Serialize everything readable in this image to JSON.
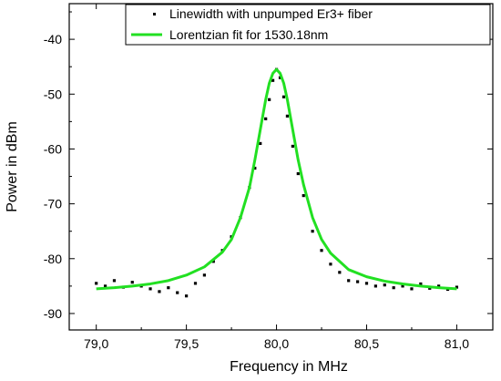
{
  "chart_data": {
    "type": "scatter",
    "title": "",
    "xlabel": "Frequency in MHz",
    "ylabel": "Power in dBm",
    "xlim": [
      78.85,
      81.2
    ],
    "ylim": [
      -93,
      -33.5
    ],
    "x_ticks": [
      79.0,
      79.5,
      80.0,
      80.5,
      81.0
    ],
    "x_tick_labels": [
      "79,0",
      "79,5",
      "80,0",
      "80,5",
      "81,0"
    ],
    "y_ticks": [
      -90,
      -80,
      -70,
      -60,
      -50,
      -40
    ],
    "y_tick_labels": [
      "-90",
      "-80",
      "-70",
      "-60",
      "-50",
      "-40"
    ],
    "grid": false,
    "legend_position": "top-right",
    "colors": {
      "measured": "#000000",
      "fit": "#22e022"
    },
    "series": [
      {
        "name": "Linewidth with unpumped Er3+ fiber",
        "style": "points",
        "x": [
          79.0,
          79.05,
          79.1,
          79.15,
          79.2,
          79.25,
          79.3,
          79.35,
          79.4,
          79.45,
          79.5,
          79.55,
          79.6,
          79.65,
          79.7,
          79.75,
          79.8,
          79.85,
          79.88,
          79.91,
          79.94,
          79.96,
          79.98,
          80.0,
          80.02,
          80.04,
          80.06,
          80.09,
          80.12,
          80.15,
          80.2,
          80.25,
          80.3,
          80.35,
          80.4,
          80.45,
          80.5,
          80.55,
          80.6,
          80.65,
          80.7,
          80.75,
          80.8,
          80.85,
          80.9,
          80.95,
          81.0
        ],
        "y": [
          -84.5,
          -85.0,
          -84.0,
          -85.2,
          -84.3,
          -85.0,
          -85.5,
          -86.0,
          -85.3,
          -86.2,
          -86.8,
          -84.5,
          -83.0,
          -80.5,
          -78.5,
          -76.0,
          -72.5,
          -67.0,
          -63.5,
          -59.0,
          -54.5,
          -51.0,
          -47.5,
          -45.5,
          -47.0,
          -50.5,
          -54.0,
          -59.5,
          -64.5,
          -68.5,
          -75.0,
          -78.5,
          -81.0,
          -82.5,
          -84.0,
          -84.2,
          -84.5,
          -85.0,
          -84.8,
          -85.3,
          -85.0,
          -85.5,
          -84.6,
          -85.4,
          -85.0,
          -85.6,
          -85.2
        ]
      },
      {
        "name": "Lorentzian fit for 1530.18nm",
        "style": "line",
        "x": [
          79.0,
          79.1,
          79.2,
          79.3,
          79.4,
          79.5,
          79.6,
          79.7,
          79.75,
          79.8,
          79.85,
          79.88,
          79.91,
          79.94,
          79.96,
          79.98,
          80.0,
          80.02,
          80.04,
          80.06,
          80.09,
          80.12,
          80.15,
          80.2,
          80.25,
          80.3,
          80.4,
          80.5,
          80.6,
          80.7,
          80.8,
          80.9,
          81.0
        ],
        "y": [
          -85.5,
          -85.3,
          -85.0,
          -84.6,
          -84.0,
          -83.0,
          -81.5,
          -78.8,
          -76.5,
          -72.5,
          -67.0,
          -62.0,
          -56.5,
          -51.0,
          -48.0,
          -46.2,
          -45.5,
          -46.2,
          -48.0,
          -51.0,
          -56.5,
          -62.0,
          -66.5,
          -72.5,
          -76.5,
          -79.0,
          -82.0,
          -83.3,
          -84.1,
          -84.6,
          -85.0,
          -85.3,
          -85.5
        ]
      }
    ]
  }
}
